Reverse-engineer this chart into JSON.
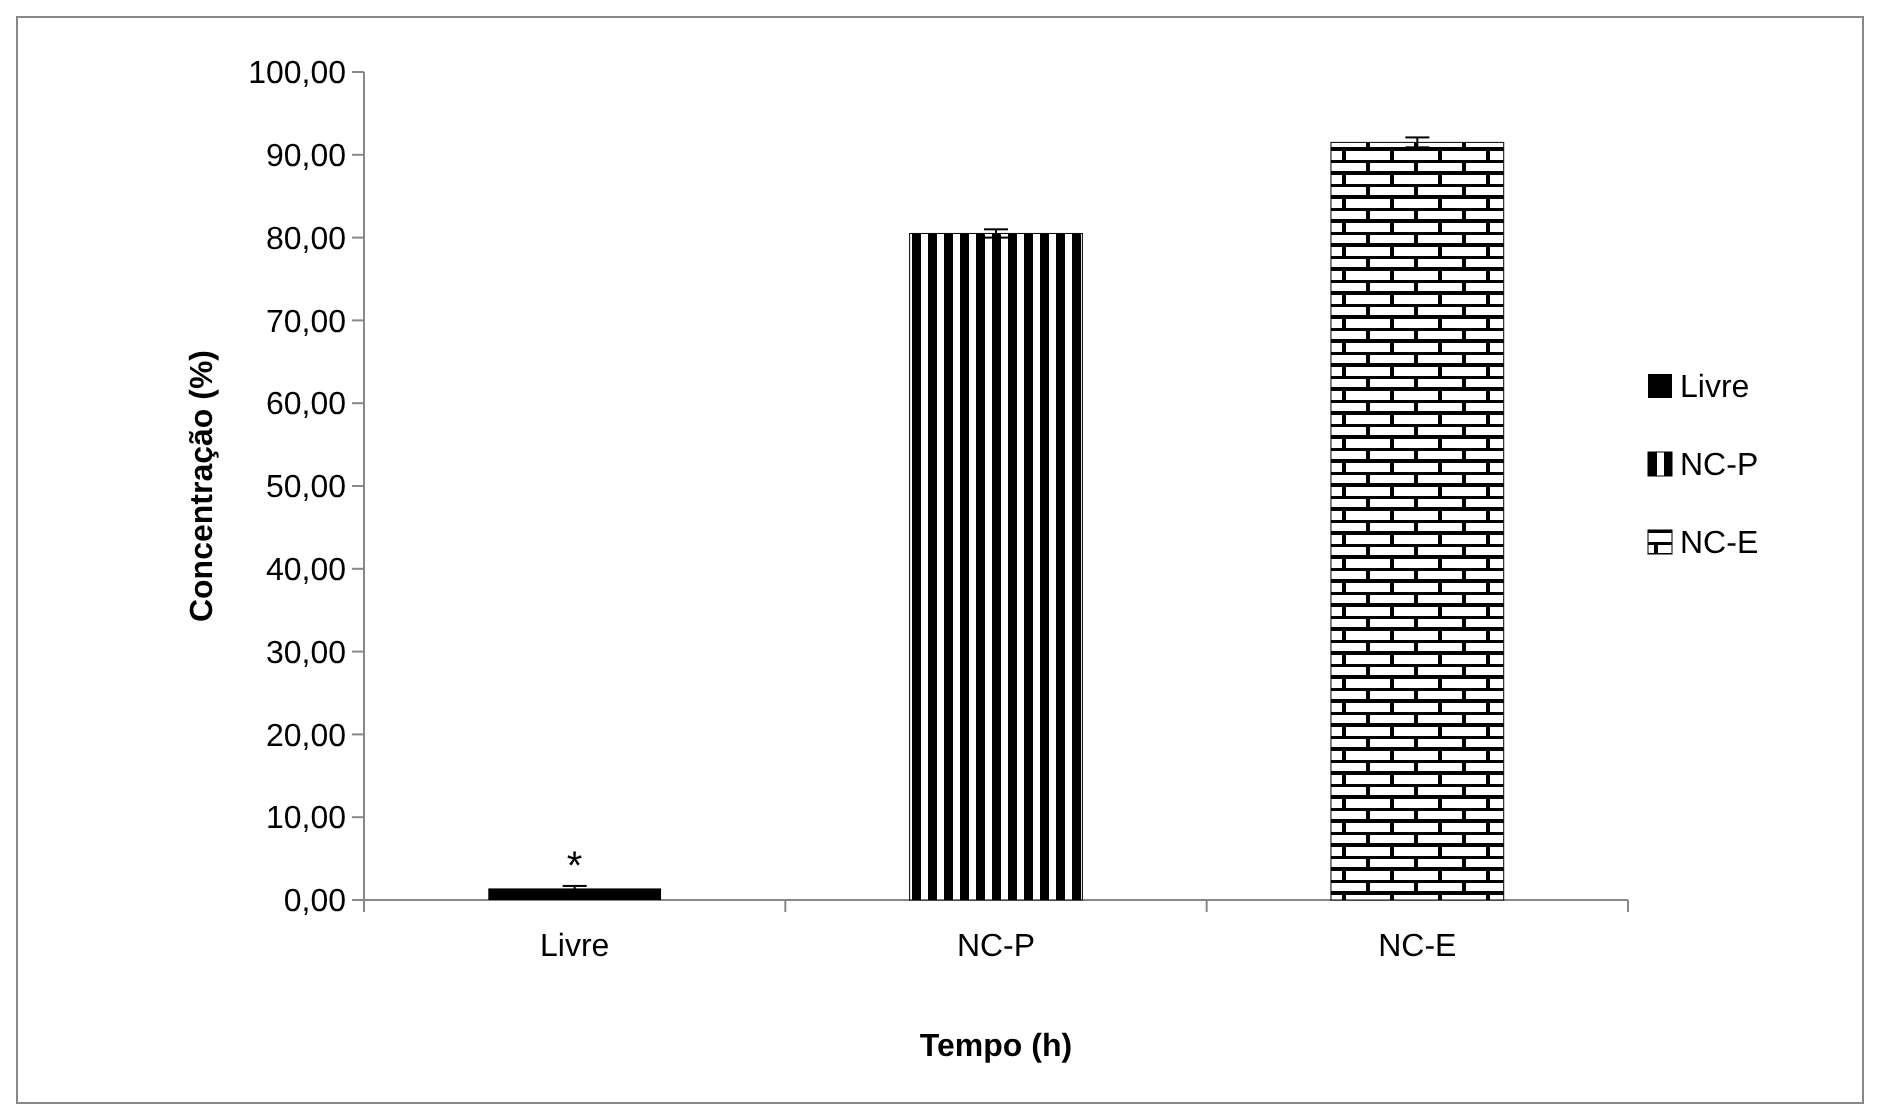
{
  "chart_data": {
    "type": "bar",
    "xlabel": "Tempo (h)",
    "ylabel": "Concentração (%)",
    "categories": [
      "Livre",
      "NC-P",
      "NC-E"
    ],
    "stacked": true,
    "series": [
      {
        "name": "Livre",
        "color": "#000000",
        "values": [
          1.4,
          null,
          null
        ],
        "errors": [
          0.3,
          null,
          null
        ]
      },
      {
        "name": "NC-P",
        "color": "#000000",
        "values": [
          null,
          80.5,
          null
        ],
        "errors": [
          null,
          0.5,
          null
        ]
      },
      {
        "name": "NC-E",
        "color": "#000000",
        "values": [
          null,
          null,
          91.5
        ],
        "errors": [
          null,
          null,
          0.6
        ]
      }
    ],
    "ylim": [
      0,
      100
    ],
    "yticks": [
      {
        "value": 0,
        "label": "0,00"
      },
      {
        "value": 10,
        "label": "10,00"
      },
      {
        "value": 20,
        "label": "20,00"
      },
      {
        "value": 30,
        "label": "30,00"
      },
      {
        "value": 40,
        "label": "40,00"
      },
      {
        "value": 50,
        "label": "50,00"
      },
      {
        "value": 60,
        "label": "60,00"
      },
      {
        "value": 70,
        "label": "70,00"
      },
      {
        "value": 80,
        "label": "80,00"
      },
      {
        "value": 90,
        "label": "90,00"
      },
      {
        "value": 100,
        "label": "100,00"
      }
    ],
    "annotations": [
      {
        "text": "*",
        "x": "Livre",
        "y": 2.5
      }
    ],
    "grid": false,
    "legend": "right"
  }
}
